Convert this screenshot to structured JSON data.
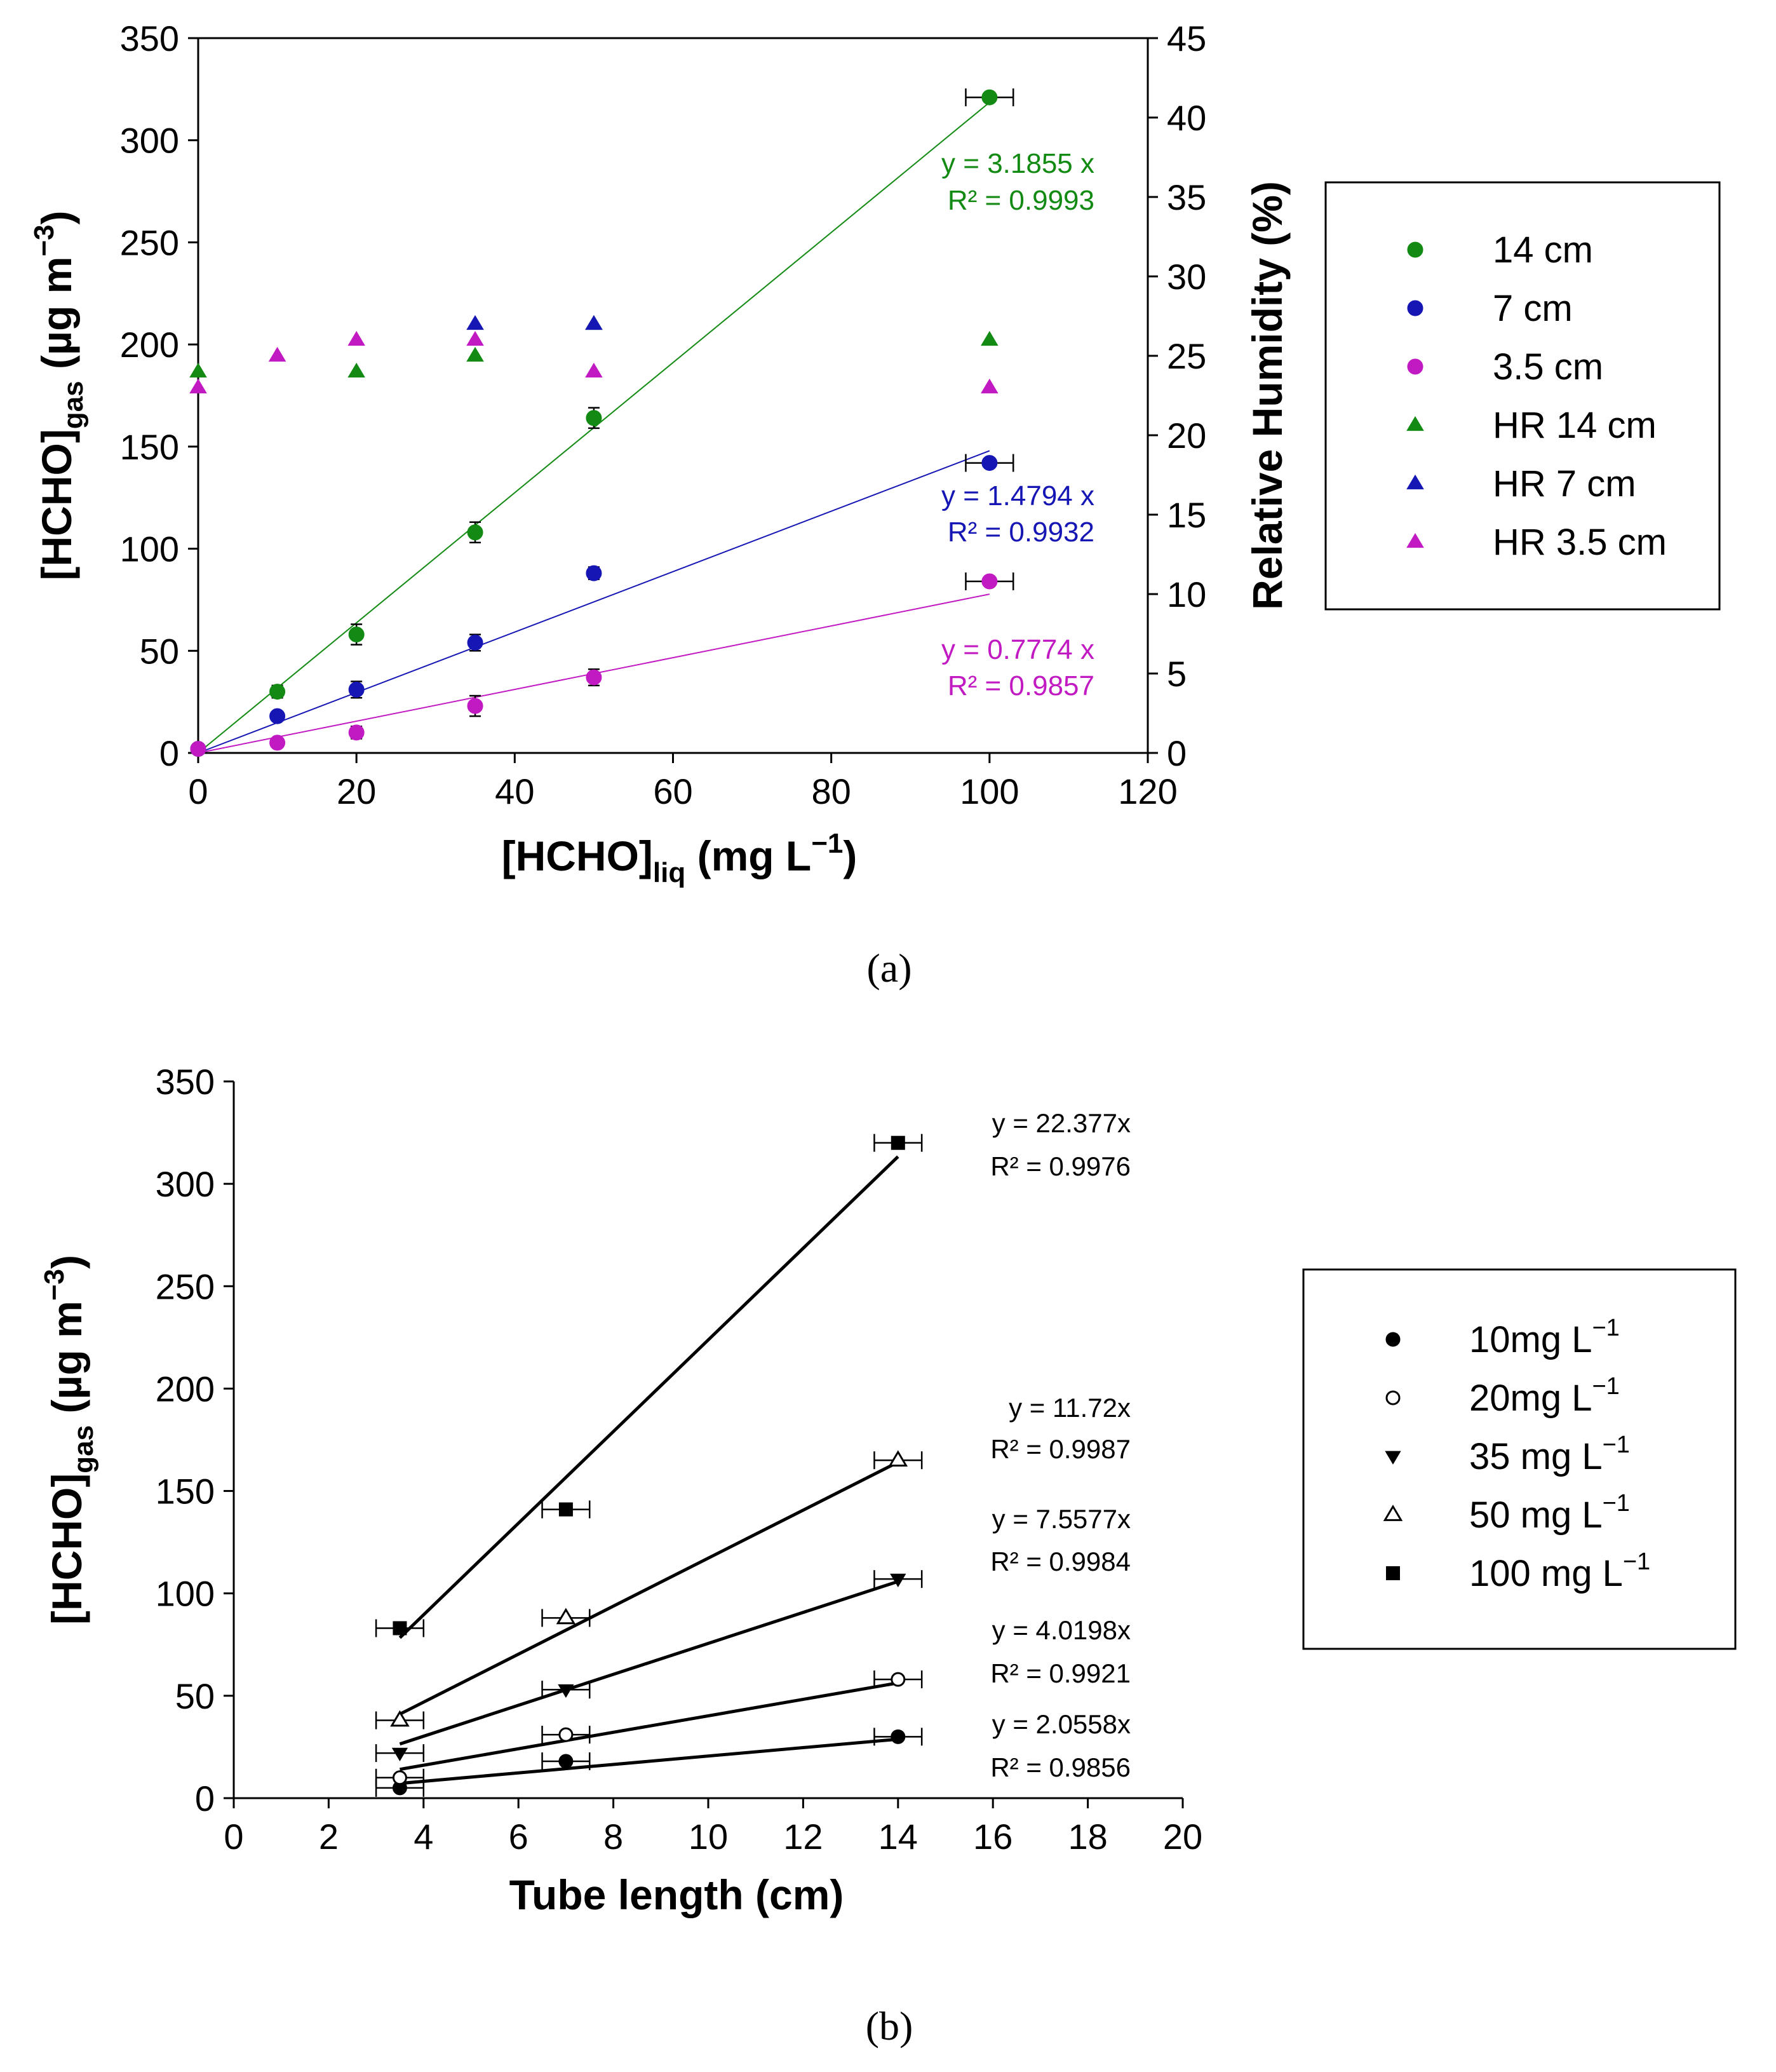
{
  "chart_data": [
    {
      "id": "a",
      "type": "scatter",
      "panel_label": "(a)",
      "xlabel": {
        "main": "[HCHO]",
        "sub": "liq",
        "rest": " (mg L",
        "sup": "−1",
        "end": ")"
      },
      "ylabel": {
        "main": "[HCHO]",
        "sub": "gas",
        "rest": " (µg m",
        "sup": "−3",
        "end": ")"
      },
      "y2label": "Relative Humidity (%)",
      "xlim": [
        0,
        120
      ],
      "ylim": [
        0,
        350
      ],
      "y2lim": [
        0,
        45
      ],
      "xticks": [
        "0",
        "20",
        "40",
        "60",
        "80",
        "100",
        "120"
      ],
      "yticks": [
        "0",
        "50",
        "100",
        "150",
        "200",
        "250",
        "300",
        "350"
      ],
      "y2ticks": [
        "0",
        "5",
        "10",
        "15",
        "20",
        "25",
        "30",
        "35",
        "40",
        "45"
      ],
      "series": [
        {
          "name": "14 cm",
          "marker": "circle",
          "color": "#138a13",
          "axis": "left",
          "x": [
            0,
            10,
            20,
            35,
            50,
            100
          ],
          "y": [
            2,
            30,
            58,
            108,
            164,
            321
          ],
          "yerr": [
            2,
            3,
            5,
            5,
            5,
            0
          ],
          "xerr": [
            0,
            0,
            0,
            0,
            0,
            3
          ],
          "fit": {
            "slope": 3.1855,
            "x_range": [
              0,
              100
            ],
            "eq": "y = 3.1855 x",
            "r2": "R² = 0.9993"
          }
        },
        {
          "name": "7 cm",
          "marker": "circle",
          "color": "#1616b4",
          "axis": "left",
          "x": [
            0,
            10,
            20,
            35,
            50,
            100
          ],
          "y": [
            2,
            18,
            31,
            54,
            88,
            142
          ],
          "yerr": [
            1,
            2,
            4,
            4,
            3,
            0
          ],
          "xerr": [
            0,
            0,
            0,
            0,
            0,
            3
          ],
          "fit": {
            "slope": 1.4794,
            "x_range": [
              0,
              100
            ],
            "eq": "y = 1.4794 x",
            "r2": "R² = 0.9932"
          }
        },
        {
          "name": "3.5 cm",
          "marker": "circle",
          "color": "#c21ac2",
          "axis": "left",
          "x": [
            0,
            10,
            20,
            35,
            50,
            100
          ],
          "y": [
            2,
            5,
            10,
            23,
            37,
            84
          ],
          "yerr": [
            1,
            1,
            3,
            5,
            4,
            0
          ],
          "xerr": [
            0,
            0,
            0,
            0,
            0,
            3
          ],
          "fit": {
            "slope": 0.7774,
            "x_range": [
              0,
              100
            ],
            "eq": "y = 0.7774 x",
            "r2": "R² = 0.9857"
          }
        },
        {
          "name": "HR 14 cm",
          "marker": "triangle",
          "color": "#138a13",
          "axis": "right",
          "x": [
            0,
            20,
            35,
            50,
            100
          ],
          "y": [
            24,
            24,
            25,
            27,
            26
          ]
        },
        {
          "name": "HR 7 cm",
          "marker": "triangle",
          "color": "#1616b4",
          "axis": "right",
          "x": [
            35,
            50
          ],
          "y": [
            27,
            27
          ]
        },
        {
          "name": "HR 3.5 cm",
          "marker": "triangle",
          "color": "#c21ac2",
          "axis": "right",
          "x": [
            0,
            10,
            20,
            35,
            50,
            100
          ],
          "y": [
            23,
            25,
            26,
            26,
            24,
            23
          ]
        }
      ]
    },
    {
      "id": "b",
      "type": "scatter",
      "panel_label": "(b)",
      "xlabel": {
        "main": "Tube length (cm)",
        "sub": "",
        "rest": "",
        "sup": "",
        "end": ""
      },
      "ylabel": {
        "main": "[HCHO]",
        "sub": "gas",
        "rest": " (µg m",
        "sup": "−3",
        "end": ")"
      },
      "xlim": [
        0,
        20
      ],
      "ylim": [
        0,
        350
      ],
      "xticks": [
        "0",
        "2",
        "4",
        "6",
        "8",
        "10",
        "12",
        "14",
        "16",
        "18",
        "20"
      ],
      "yticks": [
        "0",
        "50",
        "100",
        "150",
        "200",
        "250",
        "300",
        "350"
      ],
      "series": [
        {
          "name": "10mg L",
          "sup": "−1",
          "marker": "filled-circle",
          "color": "#000000",
          "x": [
            3.5,
            7,
            14
          ],
          "y": [
            5,
            18,
            30
          ],
          "fit": {
            "slope": 2.0558,
            "x_range": [
              3.5,
              14
            ],
            "eq": "y = 2.0558x",
            "r2": "R² = 0.9856"
          }
        },
        {
          "name": "20mg L",
          "sup": "−1",
          "marker": "open-circle",
          "color": "#000000",
          "x": [
            3.5,
            7,
            14
          ],
          "y": [
            10,
            31,
            58
          ],
          "fit": {
            "slope": 4.0198,
            "x_range": [
              3.5,
              14
            ],
            "eq": "y = 4.0198x",
            "r2": "R² = 0.9921"
          }
        },
        {
          "name": "35 mg L",
          "sup": "−1",
          "marker": "filled-down-triangle",
          "color": "#000000",
          "x": [
            3.5,
            7,
            14
          ],
          "y": [
            22,
            53,
            107
          ],
          "fit": {
            "slope": 7.5577,
            "x_range": [
              3.5,
              14
            ],
            "eq": "y = 7.5577x",
            "r2": "R² = 0.9984"
          }
        },
        {
          "name": "50 mg L",
          "sup": "−1",
          "marker": "open-up-triangle",
          "color": "#000000",
          "x": [
            3.5,
            7,
            14
          ],
          "y": [
            38,
            88,
            165
          ],
          "fit": {
            "slope": 11.72,
            "x_range": [
              3.5,
              14
            ],
            "eq": "y = 11.72x",
            "r2": "R² = 0.9987"
          }
        },
        {
          "name": "100 mg L",
          "sup": "−1",
          "marker": "filled-square",
          "color": "#000000",
          "x": [
            3.5,
            7,
            14
          ],
          "y": [
            83,
            141,
            320
          ],
          "fit": {
            "slope": 22.377,
            "x_range": [
              3.5,
              14
            ],
            "eq": "y = 22.377x",
            "r2": "R² = 0.9976"
          }
        }
      ]
    }
  ]
}
